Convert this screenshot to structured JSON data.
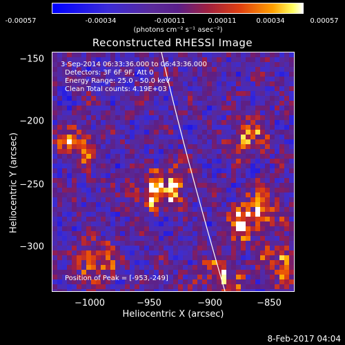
{
  "colorbar": {
    "ticks": [
      "-0.00057",
      "-0.00034",
      "-0.00011",
      "0.00011",
      "0.00034",
      "0.00057"
    ],
    "unit": "(photons cm⁻² s⁻¹ asec⁻²)"
  },
  "plot": {
    "title": "Reconstructed RHESSI Image",
    "xlabel": "Heliocentric X (arcsec)",
    "ylabel": "Heliocentric Y (arcsec)",
    "xticks": [
      "−1000",
      "−950",
      "−900",
      "−850"
    ],
    "yticks": [
      "−150",
      "−200",
      "−250",
      "−300"
    ]
  },
  "info": {
    "time": "3-Sep-2014 06:33:36.000 to 06:43:36.000",
    "detectors": "Detectors: 3F 6F 9F, Att 0",
    "energy": "Energy Range: 25.0 - 50.0 keV",
    "clean": "Clean    Total counts: 4.19E+03",
    "peak": "Position of Peak = [-953,-249]"
  },
  "footer": {
    "date": "8-Feb-2017 04:04"
  },
  "colors": {
    "background": "#000000",
    "limb": "#ffffff"
  }
}
